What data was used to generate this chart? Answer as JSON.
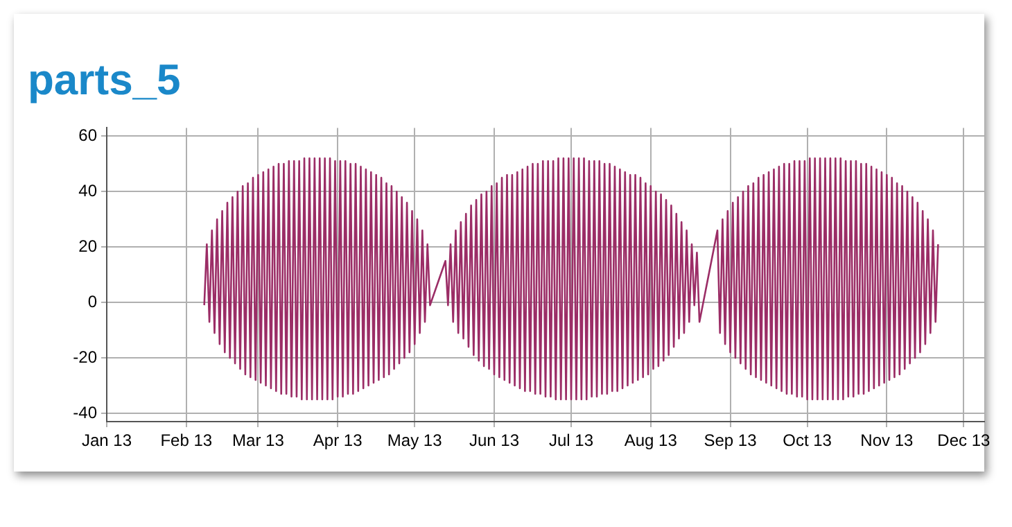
{
  "chart_data": {
    "type": "line",
    "title": "parts_5",
    "grid": true,
    "marker": "none",
    "legend": false,
    "xlim": [
      "2013-01-01",
      "2013-12-09"
    ],
    "xticks": [
      {
        "value": "2013-01-01",
        "label": "Jan 13"
      },
      {
        "value": "2013-02-01",
        "label": "Feb 13"
      },
      {
        "value": "2013-03-01",
        "label": "Mar 13"
      },
      {
        "value": "2013-04-01",
        "label": "Apr 13"
      },
      {
        "value": "2013-05-01",
        "label": "May 13"
      },
      {
        "value": "2013-06-01",
        "label": "Jun 13"
      },
      {
        "value": "2013-07-01",
        "label": "Jul 13"
      },
      {
        "value": "2013-08-01",
        "label": "Aug 13"
      },
      {
        "value": "2013-09-01",
        "label": "Sep 13"
      },
      {
        "value": "2013-10-01",
        "label": "Oct 13"
      },
      {
        "value": "2013-11-01",
        "label": "Nov 13"
      },
      {
        "value": "2013-12-01",
        "label": "Dec 13"
      }
    ],
    "ylim": [
      -43,
      63
    ],
    "yticks": [
      -40,
      -20,
      0,
      20,
      40,
      60
    ],
    "series": [
      {
        "color": "#9b2d66",
        "x": [
          "2013-02-08",
          "2013-02-09",
          "2013-02-10",
          "2013-02-11",
          "2013-02-12",
          "2013-02-13",
          "2013-02-14",
          "2013-02-15",
          "2013-02-16",
          "2013-02-17",
          "2013-02-18",
          "2013-02-19",
          "2013-02-20",
          "2013-02-21",
          "2013-02-22",
          "2013-02-23",
          "2013-02-24",
          "2013-02-25",
          "2013-02-26",
          "2013-02-27",
          "2013-02-28",
          "2013-03-01",
          "2013-03-02",
          "2013-03-03",
          "2013-03-04",
          "2013-03-05",
          "2013-03-06",
          "2013-03-07",
          "2013-03-08",
          "2013-03-09",
          "2013-03-10",
          "2013-03-11",
          "2013-03-12",
          "2013-03-13",
          "2013-03-14",
          "2013-03-15",
          "2013-03-16",
          "2013-03-17",
          "2013-03-18",
          "2013-03-19",
          "2013-03-20",
          "2013-03-21",
          "2013-03-22",
          "2013-03-23",
          "2013-03-24",
          "2013-03-25",
          "2013-03-26",
          "2013-03-27",
          "2013-03-28",
          "2013-03-29",
          "2013-03-30",
          "2013-03-31",
          "2013-04-01",
          "2013-04-02",
          "2013-04-03",
          "2013-04-04",
          "2013-04-05",
          "2013-04-06",
          "2013-04-07",
          "2013-04-08",
          "2013-04-09",
          "2013-04-10",
          "2013-04-11",
          "2013-04-12",
          "2013-04-13",
          "2013-04-14",
          "2013-04-15",
          "2013-04-16",
          "2013-04-17",
          "2013-04-18",
          "2013-04-19",
          "2013-04-20",
          "2013-04-21",
          "2013-04-22",
          "2013-04-23",
          "2013-04-24",
          "2013-04-25",
          "2013-04-26",
          "2013-04-27",
          "2013-04-28",
          "2013-04-29",
          "2013-04-30",
          "2013-05-01",
          "2013-05-02",
          "2013-05-03",
          "2013-05-04",
          "2013-05-05",
          "2013-05-06",
          "2013-05-07",
          "2013-05-13",
          "2013-05-14",
          "2013-05-15",
          "2013-05-16",
          "2013-05-17",
          "2013-05-18",
          "2013-05-19",
          "2013-05-20",
          "2013-05-21",
          "2013-05-22",
          "2013-05-23",
          "2013-05-24",
          "2013-05-25",
          "2013-05-26",
          "2013-05-27",
          "2013-05-28",
          "2013-05-29",
          "2013-05-30",
          "2013-05-31",
          "2013-06-01",
          "2013-06-02",
          "2013-06-03",
          "2013-06-04",
          "2013-06-05",
          "2013-06-06",
          "2013-06-07",
          "2013-06-08",
          "2013-06-09",
          "2013-06-10",
          "2013-06-11",
          "2013-06-12",
          "2013-06-13",
          "2013-06-14",
          "2013-06-15",
          "2013-06-16",
          "2013-06-17",
          "2013-06-18",
          "2013-06-19",
          "2013-06-20",
          "2013-06-21",
          "2013-06-22",
          "2013-06-23",
          "2013-06-24",
          "2013-06-25",
          "2013-06-26",
          "2013-06-27",
          "2013-06-28",
          "2013-06-29",
          "2013-06-30",
          "2013-07-01",
          "2013-07-02",
          "2013-07-03",
          "2013-07-04",
          "2013-07-05",
          "2013-07-06",
          "2013-07-07",
          "2013-07-08",
          "2013-07-09",
          "2013-07-10",
          "2013-07-11",
          "2013-07-12",
          "2013-07-13",
          "2013-07-14",
          "2013-07-15",
          "2013-07-16",
          "2013-07-17",
          "2013-07-18",
          "2013-07-19",
          "2013-07-20",
          "2013-07-21",
          "2013-07-22",
          "2013-07-23",
          "2013-07-24",
          "2013-07-25",
          "2013-07-26",
          "2013-07-27",
          "2013-07-28",
          "2013-07-29",
          "2013-07-30",
          "2013-07-31",
          "2013-08-01",
          "2013-08-02",
          "2013-08-03",
          "2013-08-04",
          "2013-08-05",
          "2013-08-06",
          "2013-08-07",
          "2013-08-08",
          "2013-08-09",
          "2013-08-10",
          "2013-08-11",
          "2013-08-12",
          "2013-08-13",
          "2013-08-14",
          "2013-08-15",
          "2013-08-16",
          "2013-08-17",
          "2013-08-18",
          "2013-08-19",
          "2013-08-20",
          "2013-08-27",
          "2013-08-28",
          "2013-08-29",
          "2013-08-30",
          "2013-08-31",
          "2013-09-01",
          "2013-09-02",
          "2013-09-03",
          "2013-09-04",
          "2013-09-05",
          "2013-09-06",
          "2013-09-07",
          "2013-09-08",
          "2013-09-09",
          "2013-09-10",
          "2013-09-11",
          "2013-09-12",
          "2013-09-13",
          "2013-09-14",
          "2013-09-15",
          "2013-09-16",
          "2013-09-17",
          "2013-09-18",
          "2013-09-19",
          "2013-09-20",
          "2013-09-21",
          "2013-09-22",
          "2013-09-23",
          "2013-09-24",
          "2013-09-25",
          "2013-09-26",
          "2013-09-27",
          "2013-09-28",
          "2013-09-29",
          "2013-09-30",
          "2013-10-01",
          "2013-10-02",
          "2013-10-03",
          "2013-10-04",
          "2013-10-05",
          "2013-10-06",
          "2013-10-07",
          "2013-10-08",
          "2013-10-09",
          "2013-10-10",
          "2013-10-11",
          "2013-10-12",
          "2013-10-13",
          "2013-10-14",
          "2013-10-15",
          "2013-10-16",
          "2013-10-17",
          "2013-10-18",
          "2013-10-19",
          "2013-10-20",
          "2013-10-21",
          "2013-10-22",
          "2013-10-23",
          "2013-10-24",
          "2013-10-25",
          "2013-10-26",
          "2013-10-27",
          "2013-10-28",
          "2013-10-29",
          "2013-10-30",
          "2013-10-31",
          "2013-11-01",
          "2013-11-02",
          "2013-11-03",
          "2013-11-04",
          "2013-11-05",
          "2013-11-06",
          "2013-11-07",
          "2013-11-08",
          "2013-11-09",
          "2013-11-10",
          "2013-11-11",
          "2013-11-12",
          "2013-11-13",
          "2013-11-14",
          "2013-11-15",
          "2013-11-16",
          "2013-11-17",
          "2013-11-18",
          "2013-11-19",
          "2013-11-20",
          "2013-11-21"
        ],
        "values": [
          -1,
          21,
          -7,
          26,
          -11,
          30,
          -15,
          33,
          -18,
          36,
          -20,
          38,
          -22,
          40,
          -24,
          42,
          -26,
          43,
          -27,
          45,
          -28,
          46,
          -29,
          47,
          -30,
          48,
          -31,
          49,
          -32,
          50,
          -33,
          50,
          -33,
          51,
          -34,
          51,
          -34,
          51,
          -35,
          52,
          -35,
          52,
          -35,
          52,
          -35,
          52,
          -35,
          52,
          -35,
          52,
          -35,
          51,
          -34,
          51,
          -34,
          51,
          -33,
          50,
          -33,
          50,
          -32,
          49,
          -31,
          48,
          -30,
          47,
          -29,
          46,
          -28,
          45,
          -27,
          43,
          -26,
          42,
          -24,
          40,
          -22,
          38,
          -20,
          36,
          -18,
          33,
          -15,
          30,
          -11,
          26,
          -7,
          21,
          -1,
          15,
          -1,
          21,
          -7,
          26,
          -11,
          29,
          -13,
          32,
          -16,
          35,
          -19,
          37,
          -21,
          39,
          -23,
          40,
          -24,
          42,
          -26,
          43,
          -27,
          45,
          -28,
          46,
          -29,
          46,
          -30,
          47,
          -31,
          48,
          -32,
          49,
          -32,
          50,
          -33,
          50,
          -33,
          51,
          -34,
          51,
          -34,
          51,
          -35,
          52,
          -35,
          52,
          -35,
          52,
          -35,
          52,
          -35,
          52,
          -35,
          52,
          -35,
          51,
          -34,
          51,
          -34,
          51,
          -33,
          50,
          -33,
          50,
          -32,
          49,
          -32,
          48,
          -31,
          47,
          -30,
          46,
          -29,
          46,
          -28,
          45,
          -27,
          43,
          -26,
          42,
          -24,
          40,
          -23,
          39,
          -21,
          37,
          -19,
          35,
          -16,
          32,
          -13,
          29,
          -11,
          26,
          -7,
          21,
          -1,
          18,
          -7,
          26,
          -11,
          30,
          -15,
          33,
          -18,
          36,
          -20,
          38,
          -22,
          40,
          -24,
          42,
          -26,
          43,
          -27,
          45,
          -28,
          46,
          -29,
          47,
          -30,
          48,
          -31,
          49,
          -32,
          50,
          -33,
          50,
          -33,
          51,
          -34,
          51,
          -34,
          51,
          -35,
          52,
          -35,
          52,
          -35,
          52,
          -35,
          52,
          -35,
          52,
          -35,
          52,
          -35,
          52,
          -35,
          51,
          -34,
          51,
          -34,
          51,
          -33,
          50,
          -33,
          50,
          -32,
          49,
          -31,
          48,
          -30,
          47,
          -29,
          46,
          -28,
          45,
          -27,
          43,
          -26,
          42,
          -24,
          40,
          -22,
          38,
          -20,
          36,
          -18,
          33,
          -15,
          30,
          -11,
          26,
          -7,
          21
        ]
      }
    ]
  }
}
